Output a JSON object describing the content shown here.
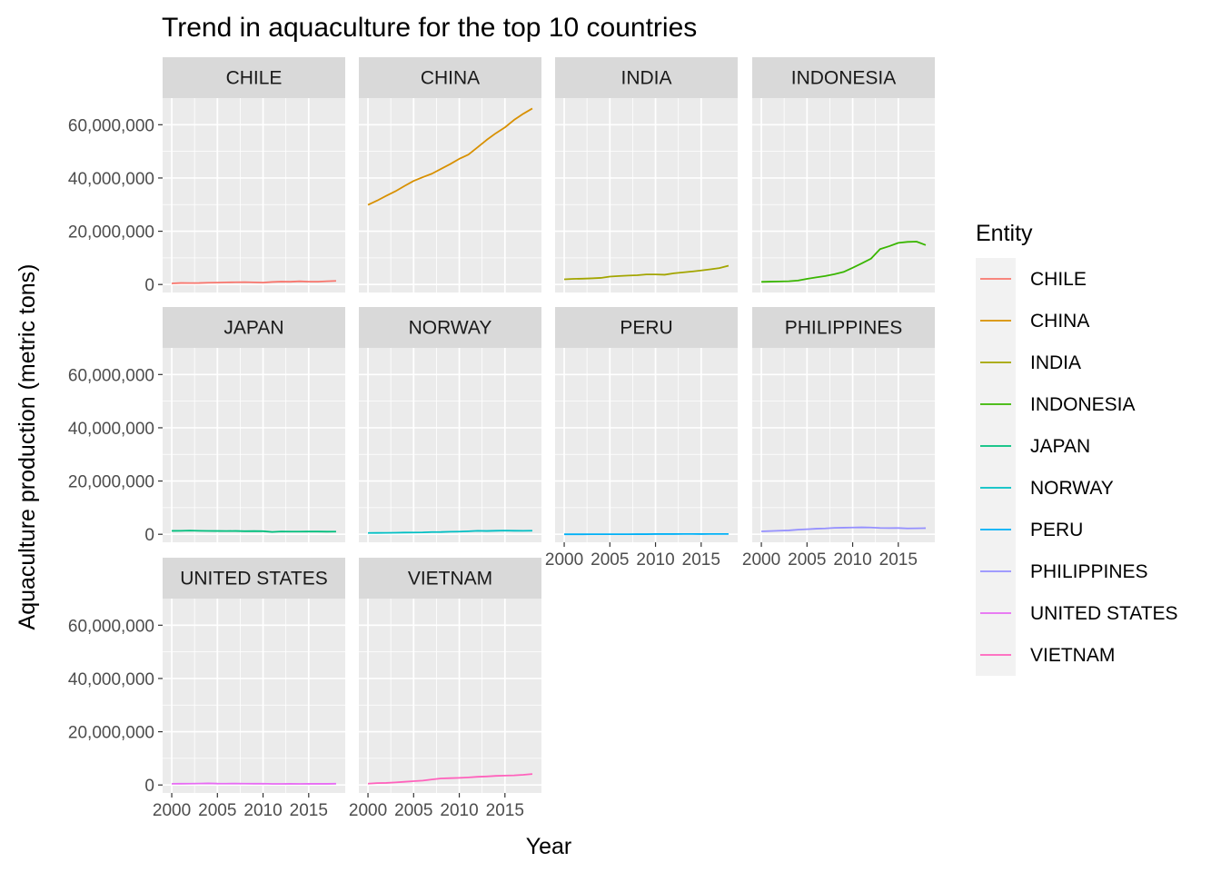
{
  "chart_data": {
    "type": "line",
    "title": "Trend in aquaculture for the top 10 countries",
    "xlabel": "Year",
    "ylabel": "Aquaculture production (metric tons)",
    "xlim": [
      1999,
      2019
    ],
    "ylim": [
      -3000000,
      70000000
    ],
    "x_ticks": [
      2000,
      2005,
      2010,
      2015
    ],
    "x_tick_labels": [
      "2000",
      "2005",
      "2010",
      "2015"
    ],
    "y_ticks": [
      0,
      20000000,
      40000000,
      60000000
    ],
    "y_tick_labels": [
      "0",
      "20,000,000",
      "40,000,000",
      "60,000,000"
    ],
    "facet_layout": {
      "columns": 4,
      "rows": 3
    },
    "grid": true,
    "legend": {
      "title": "Entity",
      "position": "right"
    },
    "x": [
      2000,
      2001,
      2002,
      2003,
      2004,
      2005,
      2006,
      2007,
      2008,
      2009,
      2010,
      2011,
      2012,
      2013,
      2014,
      2015,
      2016,
      2017,
      2018
    ],
    "series": [
      {
        "name": "CHILE",
        "color": "#F8766D",
        "values": [
          400000,
          560000,
          550000,
          560000,
          660000,
          710000,
          800000,
          840000,
          870000,
          800000,
          700000,
          950000,
          1070000,
          1030000,
          1200000,
          1050000,
          1050000,
          1220000,
          1350000
        ]
      },
      {
        "name": "CHINA",
        "color": "#D89000",
        "values": [
          29900000,
          31500000,
          33300000,
          35000000,
          37000000,
          38900000,
          40300000,
          41600000,
          43400000,
          45200000,
          47200000,
          48800000,
          51500000,
          54300000,
          56800000,
          59000000,
          61800000,
          64100000,
          66100000
        ]
      },
      {
        "name": "INDIA",
        "color": "#A3A500",
        "values": [
          1940000,
          2120000,
          2190000,
          2310000,
          2470000,
          2970000,
          3180000,
          3350000,
          3480000,
          3790000,
          3790000,
          3670000,
          4210000,
          4550000,
          4880000,
          5260000,
          5700000,
          6180000,
          7070000
        ]
      },
      {
        "name": "INDONESIA",
        "color": "#39B600",
        "values": [
          990000,
          1080000,
          1140000,
          1230000,
          1470000,
          2120000,
          2680000,
          3190000,
          3850000,
          4710000,
          6280000,
          7930000,
          9670000,
          13300000,
          14380000,
          15630000,
          16000000,
          16100000,
          14800000
        ]
      },
      {
        "name": "JAPAN",
        "color": "#00BF7D",
        "values": [
          1290000,
          1310000,
          1380000,
          1300000,
          1260000,
          1250000,
          1220000,
          1250000,
          1150000,
          1200000,
          1150000,
          880000,
          1050000,
          1020000,
          1000000,
          1060000,
          1030000,
          990000,
          1020000
        ]
      },
      {
        "name": "NORWAY",
        "color": "#00BFC4",
        "values": [
          490000,
          510000,
          550000,
          580000,
          640000,
          660000,
          710000,
          840000,
          850000,
          960000,
          1020000,
          1140000,
          1320000,
          1250000,
          1330000,
          1380000,
          1330000,
          1310000,
          1360000
        ]
      },
      {
        "name": "PERU",
        "color": "#00B0F6",
        "values": [
          7000,
          10000,
          12000,
          14000,
          22000,
          23000,
          28000,
          39000,
          44000,
          45000,
          89000,
          92000,
          92000,
          125000,
          115000,
          90000,
          100000,
          100000,
          100000
        ]
      },
      {
        "name": "PHILIPPINES",
        "color": "#9590FF",
        "values": [
          1100000,
          1220000,
          1340000,
          1460000,
          1720000,
          1900000,
          2090000,
          2210000,
          2410000,
          2480000,
          2540000,
          2610000,
          2540000,
          2370000,
          2340000,
          2350000,
          2200000,
          2240000,
          2300000
        ]
      },
      {
        "name": "UNITED STATES",
        "color": "#E76BF3",
        "values": [
          460000,
          480000,
          500000,
          540000,
          610000,
          510000,
          500000,
          540000,
          500000,
          480000,
          500000,
          400000,
          420000,
          440000,
          420000,
          430000,
          440000,
          440000,
          470000
        ]
      },
      {
        "name": "VIETNAM",
        "color": "#FF62BC",
        "values": [
          500000,
          710000,
          780000,
          970000,
          1200000,
          1440000,
          1660000,
          2080000,
          2460000,
          2560000,
          2670000,
          2840000,
          3080000,
          3210000,
          3410000,
          3530000,
          3620000,
          3830000,
          4130000
        ]
      }
    ]
  }
}
